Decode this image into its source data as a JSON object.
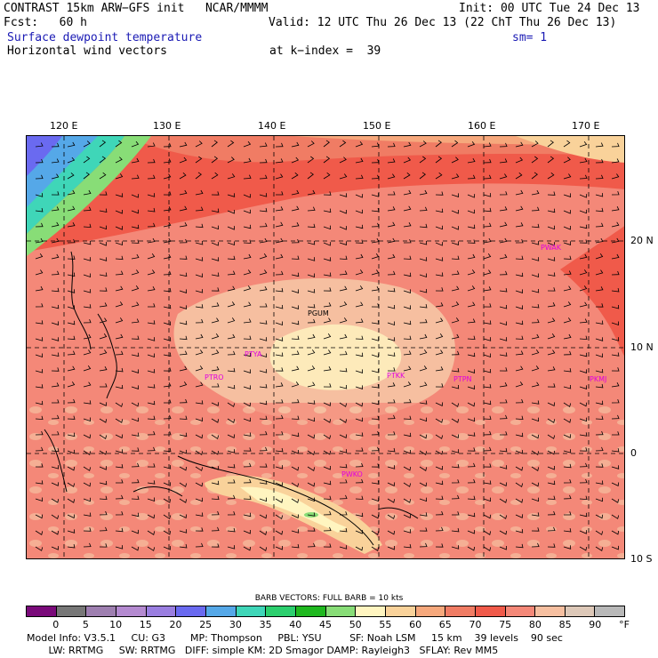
{
  "header": {
    "line1_left": "CONTRAST 15km ARW−GFS init   NCAR/MMMM",
    "line1_right": "Init: 00 UTC Tue 24 Dec 13",
    "line2_left": "Fcst:   60 h",
    "line2_right": "Valid: 12 UTC Thu 26 Dec 13 (22 ChT Thu 26 Dec 13)",
    "line3_left": "Surface dewpoint temperature",
    "line3_right": "sm= 1",
    "line4_left": "Horizontal wind vectors",
    "line4_right": "at k−index =  39"
  },
  "axes": {
    "lon_labels": [
      "120 E",
      "130 E",
      "140 E",
      "150 E",
      "160 E",
      "170 E"
    ],
    "lat_labels": [
      "20 N",
      "10 N",
      "0",
      "10 S"
    ]
  },
  "stations": [
    "PGUM",
    "PTYA",
    "PTRO",
    "PTKK",
    "PTPN",
    "PKMJ",
    "PWAK",
    "PWKO"
  ],
  "colorbar": {
    "title": "BARB VECTORS:  FULL BARB = 10 kts",
    "unit": "°F",
    "labels": [
      "0",
      "5",
      "10",
      "15",
      "20",
      "25",
      "30",
      "35",
      "40",
      "45",
      "50",
      "55",
      "60",
      "65",
      "70",
      "75",
      "80",
      "85",
      "90"
    ],
    "colors": [
      "#7a0a7a",
      "#777777",
      "#9e7fb0",
      "#b48ad0",
      "#9a7ee0",
      "#6a6af0",
      "#55a8e8",
      "#3fd6b8",
      "#2ccf6e",
      "#1fb81f",
      "#88dd77",
      "#fff5c0",
      "#f9d29a",
      "#f6a87c",
      "#f07c64",
      "#f05a4a",
      "#f48878",
      "#f6bfa0",
      "#ddc8b8",
      "#b8b8b8"
    ]
  },
  "footer": {
    "line1": "Model Info: V3.5.1     CU: G3        MP: Thompson     PBL: YSU         SF: Noah LSM     15 km    39 levels    90 sec",
    "line2": "       LW: RRTMG     SW: RRTMG   DIFF: simple KM: 2D Smagor DAMP: Rayleigh3   SFLAY: Rev MM5"
  }
}
